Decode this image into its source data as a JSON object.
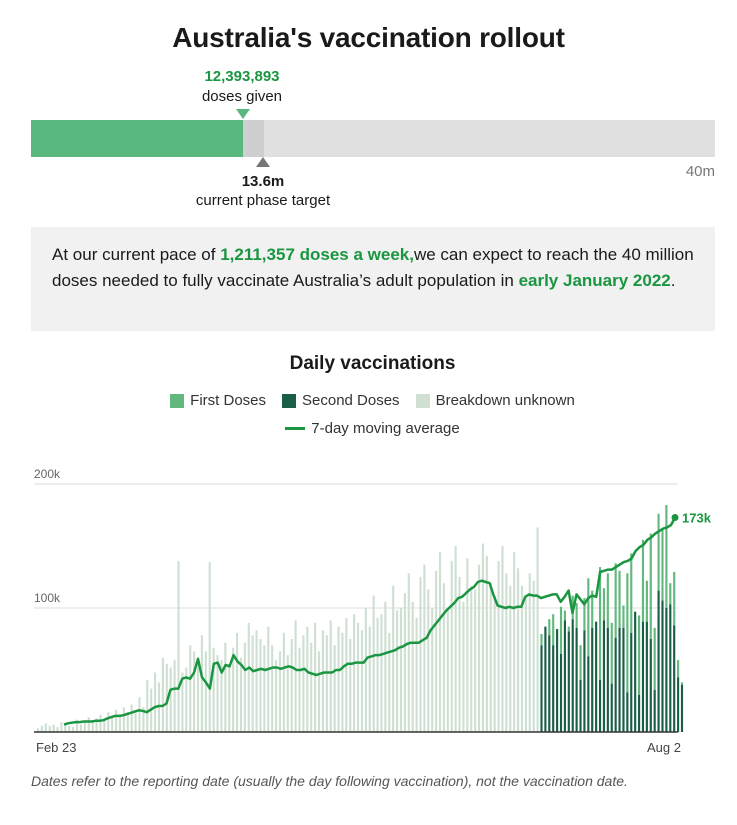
{
  "title": "Australia's vaccination rollout",
  "progress": {
    "doses_given": "12,393,893",
    "doses_given_label": "doses given",
    "target_value": "13.6m",
    "target_label": "current phase target",
    "max_label": "40m",
    "given_fraction": 0.31,
    "target_fraction": 0.34
  },
  "summary": {
    "prefix": "At our current pace of ",
    "pace": "1,211,357 doses a week,",
    "middle": "we can expect to reach the 40 million doses needed to fully vaccinate Australia’s adult population in ",
    "date": "early January 2022",
    "suffix": "."
  },
  "colors": {
    "first": "#63b97d",
    "second": "#1b5e46",
    "unknown": "#cfe0d3",
    "average": "#1a9641",
    "grid": "#dddddd"
  },
  "chart_data": {
    "type": "bar",
    "title": "Daily vaccinations",
    "legend": [
      {
        "name": "First Doses",
        "color": "#63b97d",
        "kind": "bar"
      },
      {
        "name": "Second Doses",
        "color": "#1b5e46",
        "kind": "bar"
      },
      {
        "name": "Breakdown unknown",
        "color": "#cfe0d3",
        "kind": "bar"
      },
      {
        "name": "7-day moving average",
        "color": "#1a9641",
        "kind": "line"
      }
    ],
    "x_start_label": "Feb 23",
    "x_end_label": "Aug 2",
    "ylim": [
      0,
      200000
    ],
    "yticks": [
      100000,
      200000
    ],
    "ytick_labels": [
      "100k",
      "200k"
    ],
    "grid": true,
    "split_index": 129,
    "unknown_values": [
      3000,
      5000,
      7000,
      5000,
      6000,
      4000,
      8000,
      6000,
      5000,
      4000,
      10000,
      6000,
      8000,
      12000,
      9000,
      11000,
      14000,
      10000,
      16000,
      12000,
      18000,
      14000,
      20000,
      16000,
      22000,
      15000,
      28000,
      20000,
      42000,
      35000,
      48000,
      40000,
      60000,
      55000,
      52000,
      58000,
      138000,
      48000,
      52000,
      70000,
      65000,
      60000,
      78000,
      65000,
      137000,
      68000,
      62000,
      58000,
      72000,
      55000,
      68000,
      80000,
      60000,
      72000,
      88000,
      78000,
      82000,
      75000,
      70000,
      85000,
      70000,
      58000,
      65000,
      80000,
      62000,
      75000,
      90000,
      68000,
      78000,
      85000,
      72000,
      88000,
      65000,
      82000,
      78000,
      90000,
      70000,
      85000,
      80000,
      92000,
      75000,
      95000,
      88000,
      82000,
      100000,
      85000,
      110000,
      92000,
      95000,
      105000,
      80000,
      118000,
      98000,
      100000,
      112000,
      128000,
      105000,
      92000,
      125000,
      135000,
      115000,
      100000,
      130000,
      145000,
      120000,
      100000,
      138000,
      150000,
      125000,
      105000,
      140000,
      118000,
      115000,
      135000,
      152000,
      142000,
      120000,
      110000,
      138000,
      150000,
      128000,
      118000,
      145000,
      132000,
      118000,
      110000,
      128000,
      122000,
      165000
    ],
    "first_values": [
      79000,
      70000,
      91000,
      95000,
      75000,
      101000,
      98000,
      85000,
      110000,
      104000,
      70000,
      108000,
      124000,
      114000,
      80000,
      133000,
      116000,
      128000,
      88000,
      136000,
      130000,
      102000,
      128000,
      144000,
      96000,
      94000,
      155000,
      122000,
      160000,
      84000,
      176000,
      164000,
      183000,
      120000,
      129000,
      58000,
      40000
    ],
    "second_values": [
      70000,
      85000,
      78000,
      70000,
      83000,
      63000,
      90000,
      81000,
      91000,
      84000,
      42000,
      82000,
      61000,
      84000,
      89000,
      42000,
      90000,
      84000,
      39000,
      76000,
      84000,
      84000,
      32000,
      80000,
      97000,
      30000,
      89000,
      89000,
      75000,
      34000,
      114000,
      106000,
      100000,
      103000,
      86000,
      44000,
      38000
    ],
    "average_values": [
      6000,
      7000,
      7500,
      8000,
      8000,
      8500,
      8500,
      8500,
      9000,
      9000,
      9500,
      11000,
      12000,
      13000,
      13000,
      13500,
      14500,
      15500,
      16500,
      17500,
      17000,
      16000,
      18000,
      20000,
      21000,
      21000,
      23000,
      34000,
      35000,
      35000,
      43000,
      44000,
      43000,
      48000,
      59000,
      44000,
      40000,
      35000,
      55000,
      56000,
      48000,
      54000,
      53000,
      62000,
      57000,
      54000,
      50000,
      52000,
      49000,
      50000,
      51000,
      50000,
      51000,
      52000,
      52000,
      51000,
      52000,
      53000,
      52000,
      50000,
      50000,
      51000,
      48000,
      47000,
      46000,
      47000,
      48000,
      48000,
      48000,
      50000,
      50000,
      53000,
      55000,
      55000,
      56000,
      56000,
      56000,
      60000,
      61000,
      62000,
      62000,
      63000,
      64000,
      65000,
      66000,
      68000,
      69000,
      71000,
      72000,
      72000,
      72000,
      74000,
      76000,
      82000,
      86000,
      90000,
      94000,
      98000,
      101000,
      104000,
      108000,
      109000,
      112000,
      115000,
      117000,
      121000,
      122000,
      121000,
      120000,
      110000,
      102000,
      101000,
      100000,
      101000,
      100000,
      101000,
      101000,
      109000,
      111000,
      110000,
      110000,
      108000,
      109000,
      110000,
      111000,
      111000,
      105000,
      109000,
      114000,
      96000,
      111000,
      107000,
      103000,
      108000,
      110000,
      109000,
      129000,
      130000,
      131000,
      131000,
      133000,
      135000,
      137000,
      138000,
      140000,
      146000,
      149000,
      151000,
      155000,
      157000,
      160000,
      162000,
      164000,
      165000,
      167000,
      173000
    ],
    "last_label": "173k"
  },
  "footnote": "Dates refer to the reporting date (usually the day following vaccination), not the vaccination date."
}
